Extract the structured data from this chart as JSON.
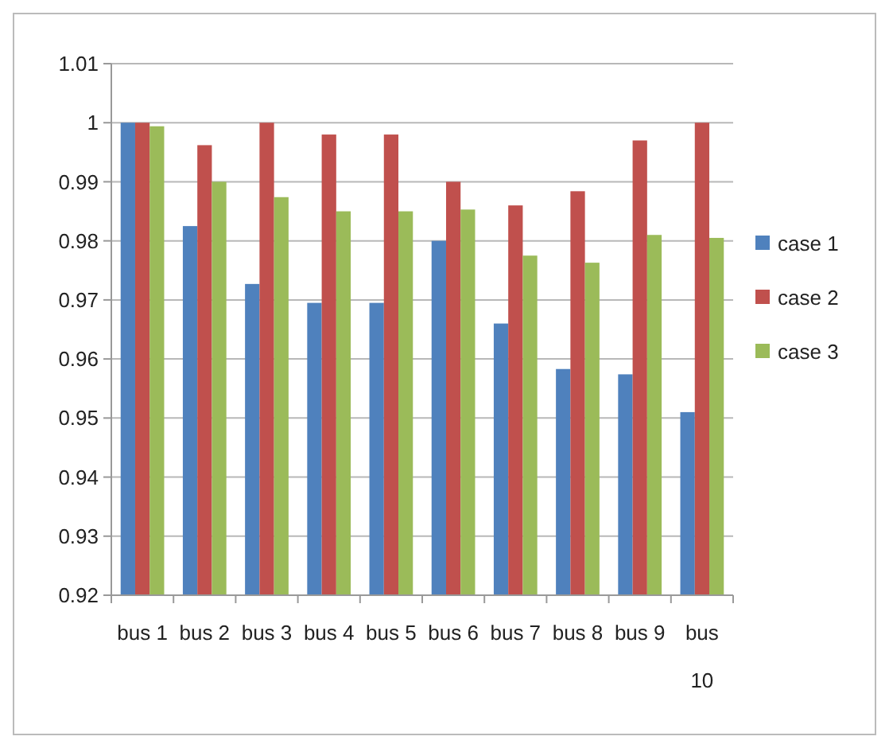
{
  "chart_data": {
    "type": "bar",
    "categories": [
      "bus 1",
      "bus 2",
      "bus 3",
      "bus 4",
      "bus 5",
      "bus 6",
      "bus 7",
      "bus 8",
      "bus 9",
      "bus 10"
    ],
    "series": [
      {
        "name": "case 1",
        "color": "#4f81bd",
        "values": [
          1.0,
          0.9825,
          0.9727,
          0.9695,
          0.9695,
          0.98,
          0.966,
          0.9583,
          0.9574,
          0.951
        ]
      },
      {
        "name": "case 2",
        "color": "#c0504d",
        "values": [
          1.0,
          0.9962,
          1.0,
          0.998,
          0.998,
          0.99,
          0.986,
          0.9884,
          0.997,
          1.0
        ]
      },
      {
        "name": "case 3",
        "color": "#9bbb59",
        "values": [
          0.9994,
          0.99,
          0.9874,
          0.985,
          0.985,
          0.9853,
          0.9775,
          0.9763,
          0.981,
          0.9805
        ]
      }
    ],
    "ylim": [
      0.92,
      1.01
    ],
    "yticks": [
      0.92,
      0.93,
      0.94,
      0.95,
      0.96,
      0.97,
      0.98,
      0.99,
      1,
      1.01
    ],
    "grid": "y",
    "legend": "right"
  }
}
